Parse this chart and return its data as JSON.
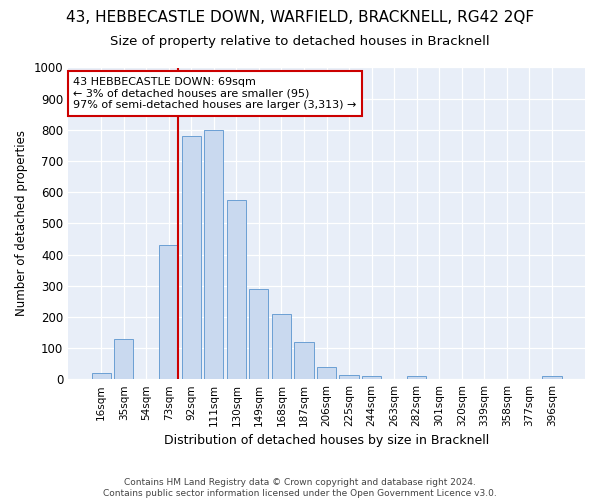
{
  "title_line1": "43, HEBBECASTLE DOWN, WARFIELD, BRACKNELL, RG42 2QF",
  "title_line2": "Size of property relative to detached houses in Bracknell",
  "xlabel": "Distribution of detached houses by size in Bracknell",
  "ylabel": "Number of detached properties",
  "categories": [
    "16sqm",
    "35sqm",
    "54sqm",
    "73sqm",
    "92sqm",
    "111sqm",
    "130sqm",
    "149sqm",
    "168sqm",
    "187sqm",
    "206sqm",
    "225sqm",
    "244sqm",
    "263sqm",
    "282sqm",
    "301sqm",
    "320sqm",
    "339sqm",
    "358sqm",
    "377sqm",
    "396sqm"
  ],
  "values": [
    20,
    130,
    0,
    430,
    780,
    800,
    575,
    290,
    210,
    120,
    40,
    15,
    10,
    0,
    10,
    0,
    0,
    0,
    0,
    0,
    10
  ],
  "bar_color": "#c9d9ef",
  "bar_edge_color": "#6b9fd4",
  "vline_x_index": 3,
  "annotation_line1": "43 HEBBECASTLE DOWN: 69sqm",
  "annotation_line2": "← 3% of detached houses are smaller (95)",
  "annotation_line3": "97% of semi-detached houses are larger (3,313) →",
  "annotation_box_color": "white",
  "annotation_box_edge_color": "#cc0000",
  "vline_color": "#cc0000",
  "ylim": [
    0,
    1000
  ],
  "yticks": [
    0,
    100,
    200,
    300,
    400,
    500,
    600,
    700,
    800,
    900,
    1000
  ],
  "footer_line1": "Contains HM Land Registry data © Crown copyright and database right 2024.",
  "footer_line2": "Contains public sector information licensed under the Open Government Licence v3.0.",
  "bg_color": "#ffffff",
  "plot_bg_color": "#e8eef8",
  "grid_color": "#ffffff",
  "title1_fontsize": 11,
  "title2_fontsize": 9.5
}
